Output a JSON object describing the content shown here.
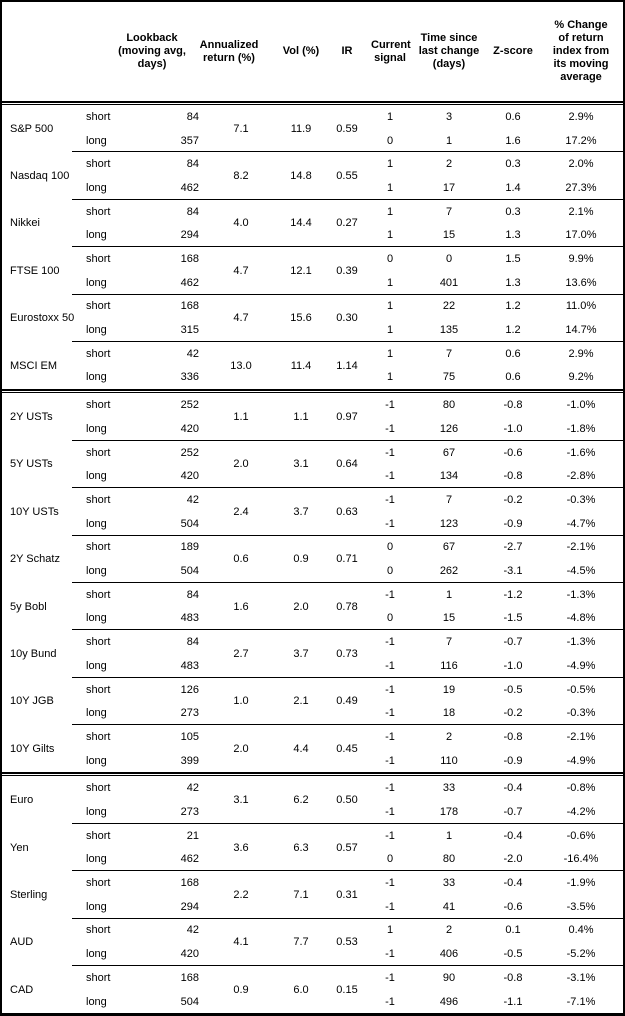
{
  "header": {
    "lookback": "Lookback (moving avg, days)",
    "annualized": "Annualized return (%)",
    "vol": "Vol (%)",
    "ir": "IR",
    "signal": "Current signal",
    "time_since": "Time since last change (days)",
    "zscore": "Z-score",
    "pct_change": "% Change of return index from its moving average"
  },
  "leg_labels": {
    "short": "short",
    "long": "long"
  },
  "sections": [
    {
      "groups": [
        {
          "name": "S&P 500",
          "annualized": "7.1",
          "vol": "11.9",
          "ir": "0.59",
          "short": {
            "lookback": "84",
            "signal": "1",
            "time_since": "3",
            "zscore": "0.6",
            "pct_change": "2.9%"
          },
          "long": {
            "lookback": "357",
            "signal": "0",
            "time_since": "1",
            "zscore": "1.6",
            "pct_change": "17.2%"
          }
        },
        {
          "name": "Nasdaq 100",
          "annualized": "8.2",
          "vol": "14.8",
          "ir": "0.55",
          "short": {
            "lookback": "84",
            "signal": "1",
            "time_since": "2",
            "zscore": "0.3",
            "pct_change": "2.0%"
          },
          "long": {
            "lookback": "462",
            "signal": "1",
            "time_since": "17",
            "zscore": "1.4",
            "pct_change": "27.3%"
          }
        },
        {
          "name": "Nikkei",
          "annualized": "4.0",
          "vol": "14.4",
          "ir": "0.27",
          "short": {
            "lookback": "84",
            "signal": "1",
            "time_since": "7",
            "zscore": "0.3",
            "pct_change": "2.1%"
          },
          "long": {
            "lookback": "294",
            "signal": "1",
            "time_since": "15",
            "zscore": "1.3",
            "pct_change": "17.0%"
          }
        },
        {
          "name": "FTSE 100",
          "annualized": "4.7",
          "vol": "12.1",
          "ir": "0.39",
          "short": {
            "lookback": "168",
            "signal": "0",
            "time_since": "0",
            "zscore": "1.5",
            "pct_change": "9.9%"
          },
          "long": {
            "lookback": "462",
            "signal": "1",
            "time_since": "401",
            "zscore": "1.3",
            "pct_change": "13.6%"
          }
        },
        {
          "name": "Eurostoxx 50",
          "annualized": "4.7",
          "vol": "15.6",
          "ir": "0.30",
          "short": {
            "lookback": "168",
            "signal": "1",
            "time_since": "22",
            "zscore": "1.2",
            "pct_change": "11.0%"
          },
          "long": {
            "lookback": "315",
            "signal": "1",
            "time_since": "135",
            "zscore": "1.2",
            "pct_change": "14.7%"
          }
        },
        {
          "name": "MSCI EM",
          "annualized": "13.0",
          "vol": "11.4",
          "ir": "1.14",
          "short": {
            "lookback": "42",
            "signal": "1",
            "time_since": "7",
            "zscore": "0.6",
            "pct_change": "2.9%"
          },
          "long": {
            "lookback": "336",
            "signal": "1",
            "time_since": "75",
            "zscore": "0.6",
            "pct_change": "9.2%"
          }
        }
      ]
    },
    {
      "groups": [
        {
          "name": "2Y USTs",
          "annualized": "1.1",
          "vol": "1.1",
          "ir": "0.97",
          "short": {
            "lookback": "252",
            "signal": "-1",
            "time_since": "80",
            "zscore": "-0.8",
            "pct_change": "-1.0%"
          },
          "long": {
            "lookback": "420",
            "signal": "-1",
            "time_since": "126",
            "zscore": "-1.0",
            "pct_change": "-1.8%"
          }
        },
        {
          "name": "5Y USTs",
          "annualized": "2.0",
          "vol": "3.1",
          "ir": "0.64",
          "short": {
            "lookback": "252",
            "signal": "-1",
            "time_since": "67",
            "zscore": "-0.6",
            "pct_change": "-1.6%"
          },
          "long": {
            "lookback": "420",
            "signal": "-1",
            "time_since": "134",
            "zscore": "-0.8",
            "pct_change": "-2.8%"
          }
        },
        {
          "name": "10Y USTs",
          "annualized": "2.4",
          "vol": "3.7",
          "ir": "0.63",
          "short": {
            "lookback": "42",
            "signal": "-1",
            "time_since": "7",
            "zscore": "-0.2",
            "pct_change": "-0.3%"
          },
          "long": {
            "lookback": "504",
            "signal": "-1",
            "time_since": "123",
            "zscore": "-0.9",
            "pct_change": "-4.7%"
          }
        },
        {
          "name": "2Y Schatz",
          "annualized": "0.6",
          "vol": "0.9",
          "ir": "0.71",
          "short": {
            "lookback": "189",
            "signal": "0",
            "time_since": "67",
            "zscore": "-2.7",
            "pct_change": "-2.1%"
          },
          "long": {
            "lookback": "504",
            "signal": "0",
            "time_since": "262",
            "zscore": "-3.1",
            "pct_change": "-4.5%"
          }
        },
        {
          "name": "5y Bobl",
          "annualized": "1.6",
          "vol": "2.0",
          "ir": "0.78",
          "short": {
            "lookback": "84",
            "signal": "-1",
            "time_since": "1",
            "zscore": "-1.2",
            "pct_change": "-1.3%"
          },
          "long": {
            "lookback": "483",
            "signal": "0",
            "time_since": "15",
            "zscore": "-1.5",
            "pct_change": "-4.8%"
          }
        },
        {
          "name": "10y Bund",
          "annualized": "2.7",
          "vol": "3.7",
          "ir": "0.73",
          "short": {
            "lookback": "84",
            "signal": "-1",
            "time_since": "7",
            "zscore": "-0.7",
            "pct_change": "-1.3%"
          },
          "long": {
            "lookback": "483",
            "signal": "-1",
            "time_since": "116",
            "zscore": "-1.0",
            "pct_change": "-4.9%"
          }
        },
        {
          "name": "10Y JGB",
          "annualized": "1.0",
          "vol": "2.1",
          "ir": "0.49",
          "short": {
            "lookback": "126",
            "signal": "-1",
            "time_since": "19",
            "zscore": "-0.5",
            "pct_change": "-0.5%"
          },
          "long": {
            "lookback": "273",
            "signal": "-1",
            "time_since": "18",
            "zscore": "-0.2",
            "pct_change": "-0.3%"
          }
        },
        {
          "name": "10Y Gilts",
          "annualized": "2.0",
          "vol": "4.4",
          "ir": "0.45",
          "short": {
            "lookback": "105",
            "signal": "-1",
            "time_since": "2",
            "zscore": "-0.8",
            "pct_change": "-2.1%"
          },
          "long": {
            "lookback": "399",
            "signal": "-1",
            "time_since": "110",
            "zscore": "-0.9",
            "pct_change": "-4.9%"
          }
        }
      ]
    },
    {
      "groups": [
        {
          "name": "Euro",
          "annualized": "3.1",
          "vol": "6.2",
          "ir": "0.50",
          "short": {
            "lookback": "42",
            "signal": "-1",
            "time_since": "33",
            "zscore": "-0.4",
            "pct_change": "-0.8%"
          },
          "long": {
            "lookback": "273",
            "signal": "-1",
            "time_since": "178",
            "zscore": "-0.7",
            "pct_change": "-4.2%"
          }
        },
        {
          "name": "Yen",
          "annualized": "3.6",
          "vol": "6.3",
          "ir": "0.57",
          "short": {
            "lookback": "21",
            "signal": "-1",
            "time_since": "1",
            "zscore": "-0.4",
            "pct_change": "-0.6%"
          },
          "long": {
            "lookback": "462",
            "signal": "0",
            "time_since": "80",
            "zscore": "-2.0",
            "pct_change": "-16.4%"
          }
        },
        {
          "name": "Sterling",
          "annualized": "2.2",
          "vol": "7.1",
          "ir": "0.31",
          "short": {
            "lookback": "168",
            "signal": "-1",
            "time_since": "33",
            "zscore": "-0.4",
            "pct_change": "-1.9%"
          },
          "long": {
            "lookback": "294",
            "signal": "-1",
            "time_since": "41",
            "zscore": "-0.6",
            "pct_change": "-3.5%"
          }
        },
        {
          "name": "AUD",
          "annualized": "4.1",
          "vol": "7.7",
          "ir": "0.53",
          "short": {
            "lookback": "42",
            "signal": "1",
            "time_since": "2",
            "zscore": "0.1",
            "pct_change": "0.4%"
          },
          "long": {
            "lookback": "420",
            "signal": "-1",
            "time_since": "406",
            "zscore": "-0.5",
            "pct_change": "-5.2%"
          }
        },
        {
          "name": "CAD",
          "annualized": "0.9",
          "vol": "6.0",
          "ir": "0.15",
          "short": {
            "lookback": "168",
            "signal": "-1",
            "time_since": "90",
            "zscore": "-0.8",
            "pct_change": "-3.1%"
          },
          "long": {
            "lookback": "504",
            "signal": "-1",
            "time_since": "496",
            "zscore": "-1.1",
            "pct_change": "-7.1%"
          }
        }
      ]
    }
  ]
}
